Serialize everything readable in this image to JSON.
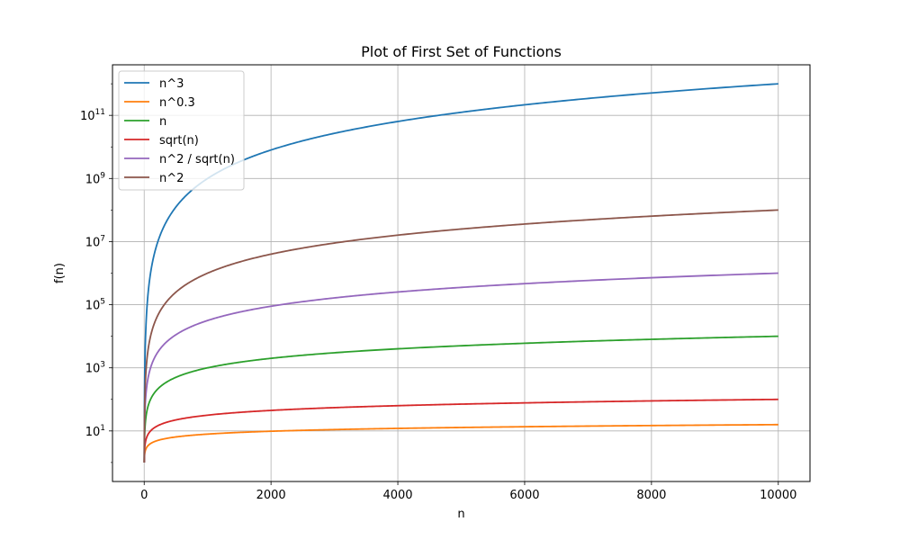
{
  "chart_data": {
    "type": "line",
    "title": "Plot of First Set of Functions",
    "xlabel": "n",
    "ylabel": "f(n)",
    "xscale": "linear",
    "yscale": "log",
    "xlim": [
      -500,
      10500
    ],
    "ylim": [
      0.25,
      4000000000000
    ],
    "xticks": [
      0,
      2000,
      4000,
      6000,
      8000,
      10000
    ],
    "xtick_labels": [
      "0",
      "2000",
      "4000",
      "6000",
      "8000",
      "10000"
    ],
    "yticks": [
      {
        "value": 10,
        "base": "10",
        "exp": "1"
      },
      {
        "value": 1000,
        "base": "10",
        "exp": "3"
      },
      {
        "value": 100000,
        "base": "10",
        "exp": "5"
      },
      {
        "value": 10000000,
        "base": "10",
        "exp": "7"
      },
      {
        "value": 1000000000,
        "base": "10",
        "exp": "9"
      },
      {
        "value": 100000000000,
        "base": "10",
        "exp": "11"
      }
    ],
    "grid": true,
    "legend_position": "top-left",
    "x_domain": [
      1,
      10000
    ],
    "series": [
      {
        "name": "n^3",
        "color": "#1f77b4",
        "exponent": 3,
        "y_range": [
          1,
          1000000000000
        ]
      },
      {
        "name": "n^0.3",
        "color": "#ff7f0e",
        "exponent": 0.3,
        "y_range": [
          1,
          15.85
        ]
      },
      {
        "name": "n",
        "color": "#2ca02c",
        "exponent": 1,
        "y_range": [
          1,
          10000
        ]
      },
      {
        "name": "sqrt(n)",
        "color": "#d62728",
        "exponent": 0.5,
        "y_range": [
          1,
          100
        ]
      },
      {
        "name": "n^2 / sqrt(n)",
        "color": "#9467bd",
        "exponent": 1.5,
        "y_range": [
          1,
          1000000
        ]
      },
      {
        "name": "n^2",
        "color": "#8c564b",
        "exponent": 2,
        "y_range": [
          1,
          100000000
        ]
      }
    ]
  }
}
